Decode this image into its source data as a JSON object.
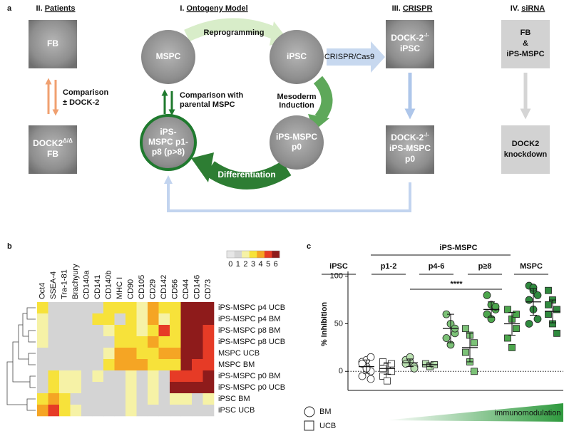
{
  "figure": {
    "a": {
      "label": "a",
      "ontogeny": {
        "number": "I.",
        "name": "Ontogeny Model",
        "nodes": [
          [
            "MSPC"
          ],
          [
            "iPSC"
          ],
          [
            "iPS-MSPC",
            "p0"
          ],
          [
            "iPS-",
            "MSPC p1-",
            "p8 (p>8)"
          ]
        ],
        "reprogramming": "Reprogramming",
        "mesoderm": [
          "Mesoderm",
          "Induction"
        ],
        "differentiation": "Differentiation",
        "comparison": [
          "Comparison with",
          "parental MSPC"
        ]
      },
      "patients": {
        "number": "II.",
        "name": "Patients",
        "top": "FB",
        "bottom": {
          "main": "DOCK2",
          "sup": "Δ/Δ",
          "line2": "FB"
        },
        "comparison": [
          "Comparison",
          "± DOCK-2"
        ]
      },
      "crispr": {
        "number": "III.",
        "name": "CRISPR",
        "arrow": "CRISPR/Cas9",
        "top": {
          "main": "DOCK-2",
          "sup": "-/-",
          "line2": "iPSC"
        },
        "bottom": {
          "main": "DOCK-2",
          "sup": "-/-",
          "line2": "iPS-MSPC",
          "line3": "p0"
        }
      },
      "sirna": {
        "number": "IV.",
        "name": "siRNA",
        "top": [
          "FB",
          "&",
          "iPS-MSPC"
        ],
        "bottom": [
          "DOCK2",
          "knockdown"
        ]
      }
    },
    "b": {
      "label": "b",
      "markers": [
        "Oct4",
        "SSEA-4",
        "Tra-1-81",
        "Brachyury",
        "CD140a",
        "CD141",
        "CD140b",
        "MHC I",
        "CD90",
        "CD105",
        "CD29",
        "CD142",
        "CD56",
        "CD44",
        "CD146",
        "CD73"
      ],
      "rows": [
        "iPS-MSPC p4 UCB",
        "iPS-MSPC p4 BM",
        "iPS-MSPC p8 BM",
        "iPS-MSPC p8 UCB",
        "MSPC UCB",
        "MSPC BM",
        "iPS-MSPC p0 BM",
        "iPS-MSPC p0 UCB",
        "iPSC BM",
        "iPSC UCB"
      ],
      "values": [
        [
          3,
          1,
          1,
          1,
          1,
          1,
          3,
          3,
          3,
          2,
          4,
          3,
          3,
          6,
          6,
          6
        ],
        [
          2,
          1,
          1,
          1,
          1,
          3,
          3,
          1,
          3,
          2,
          4,
          2,
          3,
          6,
          6,
          6
        ],
        [
          2,
          1,
          1,
          1,
          1,
          1,
          2,
          3,
          3,
          2,
          3,
          5,
          3,
          6,
          6,
          5
        ],
        [
          2,
          1,
          1,
          1,
          1,
          1,
          1,
          3,
          3,
          3,
          4,
          3,
          3,
          6,
          6,
          5
        ],
        [
          1,
          1,
          1,
          1,
          1,
          1,
          2,
          4,
          4,
          3,
          3,
          4,
          4,
          6,
          6,
          5
        ],
        [
          1,
          1,
          1,
          1,
          1,
          1,
          3,
          4,
          4,
          4,
          3,
          3,
          3,
          6,
          5,
          5
        ],
        [
          1,
          3,
          2,
          2,
          1,
          2,
          1,
          1,
          2,
          1,
          2,
          1,
          5,
          5,
          5,
          6
        ],
        [
          1,
          3,
          2,
          2,
          1,
          1,
          1,
          1,
          2,
          1,
          2,
          1,
          6,
          6,
          6,
          6
        ],
        [
          3,
          4,
          3,
          1,
          1,
          1,
          1,
          1,
          2,
          1,
          2,
          1,
          2,
          2,
          1,
          2
        ],
        [
          4,
          5,
          3,
          2,
          1,
          1,
          1,
          1,
          2,
          1,
          1,
          1,
          1,
          1,
          1,
          1
        ]
      ],
      "scale": {
        "ticks": [
          0,
          1,
          2,
          3,
          4,
          5,
          6
        ],
        "colors": [
          "#e6e6e6",
          "#d4d4d4",
          "#f6f2a6",
          "#f7e23a",
          "#f5a524",
          "#e63b26",
          "#8e1b1b"
        ]
      }
    },
    "c": {
      "label": "c",
      "header": "iPS-MSPC",
      "groups": [
        "iPSC",
        "p1-2",
        "p4-6",
        "p≥8",
        "MSPC"
      ],
      "group_colors": [
        "#ffffff",
        "#b9e0b0",
        "#7cc277",
        "#4ca64c",
        "#2f8a3e"
      ],
      "ylabel": "% Inhibition",
      "ylim": [
        -20,
        105
      ],
      "yticks": [
        0,
        50,
        100
      ],
      "significance": "****",
      "legend": [
        "BM",
        "UCB"
      ],
      "gradient_label": "immunomodulation",
      "columns": [
        {
          "points": [
            10,
            5,
            0,
            -5,
            12,
            15,
            8,
            3,
            -8
          ],
          "mean": 5,
          "sd": 7
        },
        {
          "points": [
            10,
            5,
            0,
            -5,
            -10,
            8,
            3
          ],
          "mean": 3,
          "sd": 6
        },
        {
          "points": [
            12,
            10,
            5,
            8,
            15,
            3
          ],
          "mean": 9,
          "sd": 4
        },
        {
          "points": [
            8,
            5,
            7
          ],
          "mean": 7,
          "sd": 2
        },
        {
          "points": [
            60,
            50,
            40,
            35,
            28,
            45
          ],
          "mean": 45,
          "sd": 15
        },
        {
          "points": [
            45,
            38,
            30,
            20,
            10,
            0
          ],
          "mean": 25,
          "sd": 15
        },
        {
          "points": [
            80,
            70,
            65,
            60,
            55,
            68
          ],
          "mean": 65,
          "sd": 8
        },
        {
          "points": [
            65,
            55,
            45,
            35,
            25,
            60
          ],
          "mean": 50,
          "sd": 12
        },
        {
          "points": [
            90,
            85,
            80,
            75,
            65,
            55,
            50,
            88
          ],
          "mean": 73,
          "sd": 14
        },
        {
          "points": [
            85,
            75,
            65,
            60,
            50,
            40,
            70
          ],
          "mean": 63,
          "sd": 12
        }
      ]
    }
  }
}
